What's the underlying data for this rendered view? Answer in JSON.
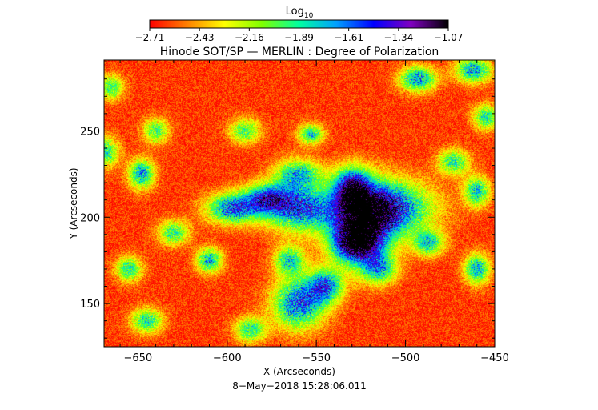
{
  "chart_data": {
    "type": "heatmap",
    "title": "Hinode SOT/SP — MERLIN : Degree of Polarization",
    "xlabel": "X (Arcseconds)",
    "ylabel": "Y (Arcseconds)",
    "xlim": [
      -669,
      -450
    ],
    "ylim": [
      125,
      291
    ],
    "xticks": [
      -650,
      -600,
      -550,
      -500,
      -450
    ],
    "xtick_labels": [
      "−650",
      "−600",
      "−550",
      "−500",
      "−450"
    ],
    "yticks": [
      150,
      200,
      250
    ],
    "ytick_labels": [
      "150",
      "200",
      "250"
    ],
    "colorbar": {
      "label_base": "Log",
      "label_sub": "10",
      "tick_labels": [
        "−2.71",
        "−2.43",
        "−2.16",
        "−1.89",
        "−1.61",
        "−1.34",
        "−1.07"
      ],
      "range": [
        -2.71,
        -1.07
      ],
      "colormap": [
        "#ff0000",
        "#ff8000",
        "#ffff00",
        "#80ff00",
        "#00ffa0",
        "#00a0ff",
        "#0000ff",
        "#8000c0",
        "#000000"
      ]
    },
    "timestamp": "8−May−2018 15:28:06.011",
    "background_level": -2.62,
    "patches": [
      {
        "x": -512,
        "y": 205,
        "sx": 18,
        "sy": 11,
        "peak": -1.2
      },
      {
        "x": -525,
        "y": 195,
        "sx": 12,
        "sy": 15,
        "peak": -1.3
      },
      {
        "x": -528,
        "y": 184,
        "sx": 9,
        "sy": 7,
        "peak": -1.45
      },
      {
        "x": -530,
        "y": 218,
        "sx": 7,
        "sy": 8,
        "peak": -1.45
      },
      {
        "x": -515,
        "y": 170,
        "sx": 7,
        "sy": 6,
        "peak": -1.7
      },
      {
        "x": -560,
        "y": 205,
        "sx": 13,
        "sy": 9,
        "peak": -1.35
      },
      {
        "x": -578,
        "y": 211,
        "sx": 9,
        "sy": 6,
        "peak": -1.55
      },
      {
        "x": -597,
        "y": 205,
        "sx": 10,
        "sy": 6,
        "peak": -1.4
      },
      {
        "x": -560,
        "y": 225,
        "sx": 9,
        "sy": 6,
        "peak": -1.65
      },
      {
        "x": -560,
        "y": 150,
        "sx": 10,
        "sy": 10,
        "peak": -1.4
      },
      {
        "x": -545,
        "y": 160,
        "sx": 7,
        "sy": 7,
        "peak": -1.5
      },
      {
        "x": -565,
        "y": 175,
        "sx": 6,
        "sy": 6,
        "peak": -1.7
      },
      {
        "x": -493,
        "y": 280,
        "sx": 7,
        "sy": 5,
        "peak": -1.5
      },
      {
        "x": -462,
        "y": 285,
        "sx": 7,
        "sy": 5,
        "peak": -1.55
      },
      {
        "x": -648,
        "y": 225,
        "sx": 5,
        "sy": 6,
        "peak": -1.55
      },
      {
        "x": -668,
        "y": 238,
        "sx": 5,
        "sy": 6,
        "peak": -1.75
      },
      {
        "x": -460,
        "y": 170,
        "sx": 5,
        "sy": 6,
        "peak": -1.6
      },
      {
        "x": -587,
        "y": 135,
        "sx": 6,
        "sy": 5,
        "peak": -1.75
      },
      {
        "x": -645,
        "y": 140,
        "sx": 6,
        "sy": 5,
        "peak": -1.75
      },
      {
        "x": -655,
        "y": 170,
        "sx": 5,
        "sy": 5,
        "peak": -1.75
      },
      {
        "x": -610,
        "y": 175,
        "sx": 5,
        "sy": 5,
        "peak": -1.6
      },
      {
        "x": -553,
        "y": 248,
        "sx": 5,
        "sy": 4,
        "peak": -1.7
      },
      {
        "x": -473,
        "y": 232,
        "sx": 6,
        "sy": 5,
        "peak": -1.75
      },
      {
        "x": -487,
        "y": 185,
        "sx": 6,
        "sy": 5,
        "peak": -1.7
      },
      {
        "x": -630,
        "y": 191,
        "sx": 6,
        "sy": 5,
        "peak": -1.8
      },
      {
        "x": -460,
        "y": 215,
        "sx": 5,
        "sy": 6,
        "peak": -1.65
      },
      {
        "x": -640,
        "y": 250,
        "sx": 5,
        "sy": 5,
        "peak": -1.85
      },
      {
        "x": -590,
        "y": 250,
        "sx": 6,
        "sy": 5,
        "peak": -1.85
      },
      {
        "x": -455,
        "y": 258,
        "sx": 5,
        "sy": 5,
        "peak": -1.75
      },
      {
        "x": -665,
        "y": 275,
        "sx": 5,
        "sy": 5,
        "peak": -1.85
      }
    ]
  }
}
